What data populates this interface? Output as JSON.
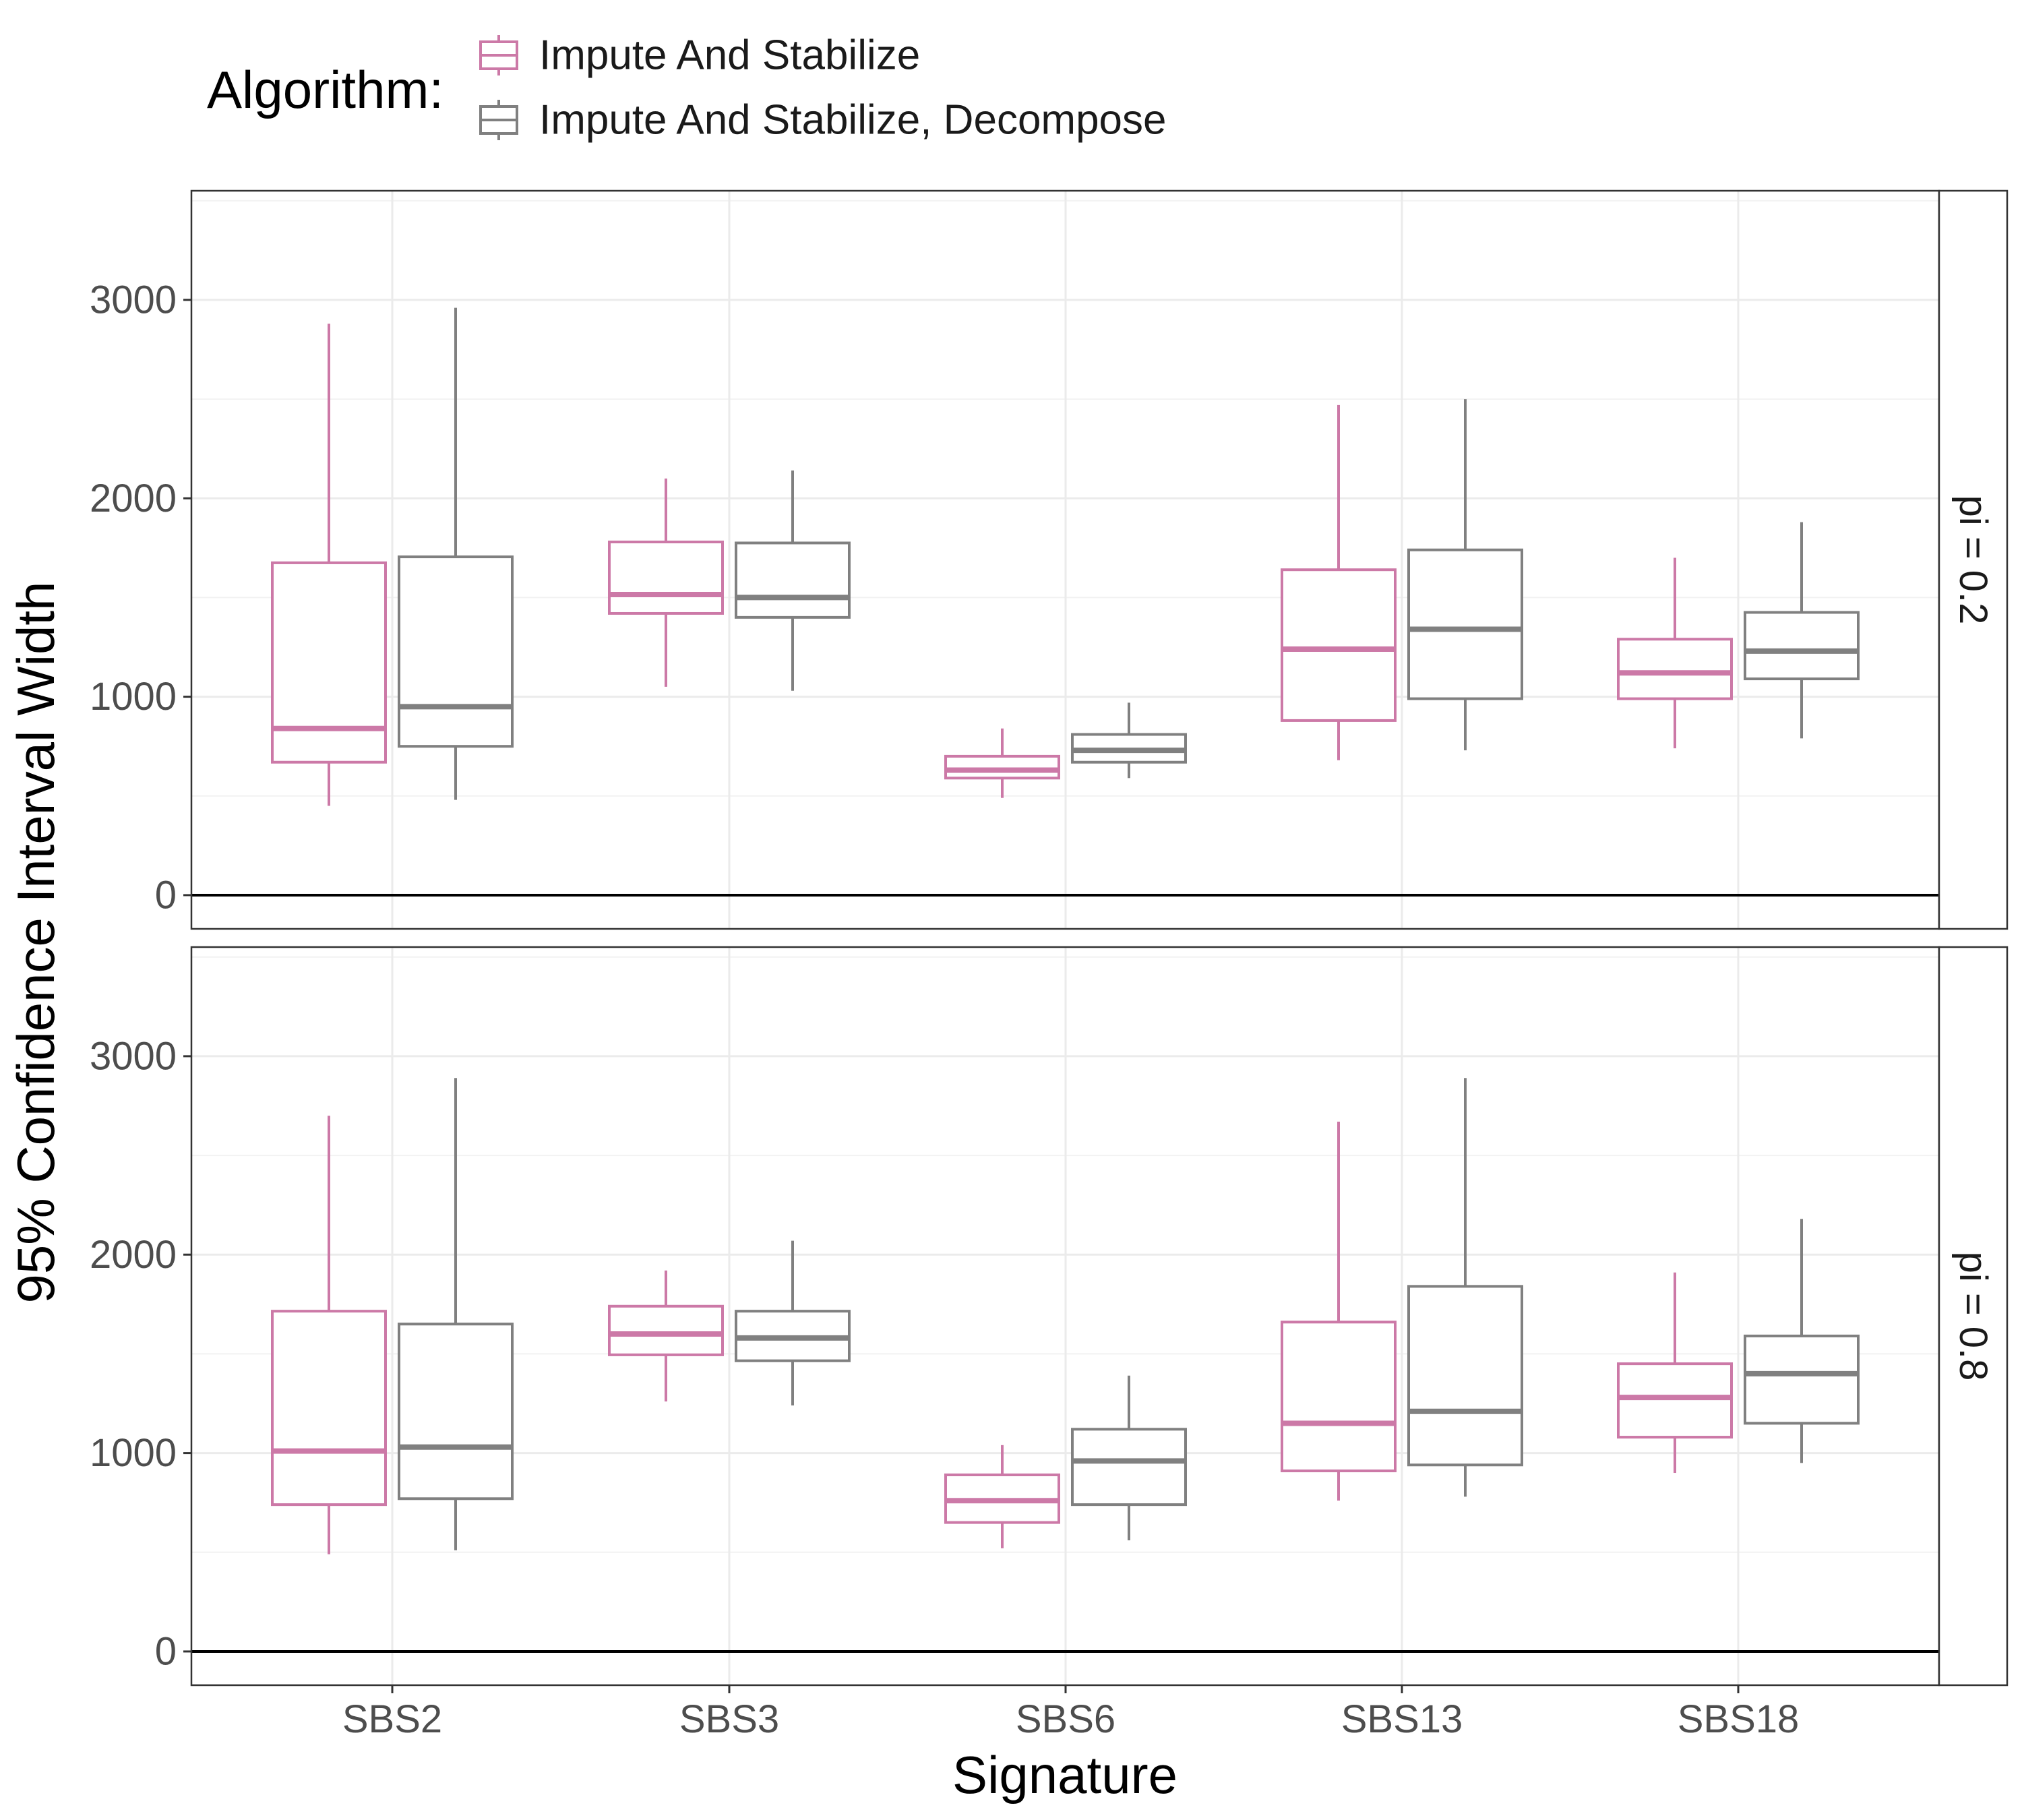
{
  "chart_data": {
    "type": "boxplot",
    "xlabel": "Signature",
    "ylabel": "95% Confidence Interval Width",
    "legend": {
      "title": "Algorithm:",
      "position": "top-left",
      "entries": [
        "Impute And Stabilize",
        "Impute And Stabilize, Decompose"
      ]
    },
    "colors": {
      "Impute And Stabilize": "#cc79a7",
      "Impute And Stabilize, Decompose": "#808080"
    },
    "categories": [
      "SBS2",
      "SBS3",
      "SBS6",
      "SBS13",
      "SBS18"
    ],
    "ylim": [
      -170,
      3550
    ],
    "yticks": [
      0,
      1000,
      2000,
      3000
    ],
    "yticks_labels": [
      "0",
      "1000",
      "2000",
      "3000"
    ],
    "hline": 0,
    "grid": true,
    "panels": [
      {
        "strip": "pi = 0.2",
        "series": [
          {
            "name": "Impute And Stabilize",
            "boxes": [
              {
                "min": 450,
                "q1": 670,
                "median": 840,
                "q3": 1675,
                "max": 2880
              },
              {
                "min": 1050,
                "q1": 1420,
                "median": 1515,
                "q3": 1780,
                "max": 2100
              },
              {
                "min": 490,
                "q1": 590,
                "median": 630,
                "q3": 700,
                "max": 840
              },
              {
                "min": 680,
                "q1": 880,
                "median": 1240,
                "q3": 1640,
                "max": 2470
              },
              {
                "min": 740,
                "q1": 990,
                "median": 1120,
                "q3": 1290,
                "max": 1700
              }
            ]
          },
          {
            "name": "Impute And Stabilize, Decompose",
            "boxes": [
              {
                "min": 480,
                "q1": 750,
                "median": 950,
                "q3": 1705,
                "max": 2960
              },
              {
                "min": 1030,
                "q1": 1400,
                "median": 1500,
                "q3": 1775,
                "max": 2140
              },
              {
                "min": 590,
                "q1": 670,
                "median": 730,
                "q3": 810,
                "max": 970
              },
              {
                "min": 730,
                "q1": 990,
                "median": 1340,
                "q3": 1740,
                "max": 2500
              },
              {
                "min": 790,
                "q1": 1090,
                "median": 1230,
                "q3": 1425,
                "max": 1880
              }
            ]
          }
        ]
      },
      {
        "strip": "pi = 0.8",
        "series": [
          {
            "name": "Impute And Stabilize",
            "boxes": [
              {
                "min": 490,
                "q1": 740,
                "median": 1010,
                "q3": 1715,
                "max": 2700
              },
              {
                "min": 1260,
                "q1": 1495,
                "median": 1600,
                "q3": 1740,
                "max": 1920
              },
              {
                "min": 520,
                "q1": 650,
                "median": 760,
                "q3": 890,
                "max": 1040
              },
              {
                "min": 760,
                "q1": 910,
                "median": 1150,
                "q3": 1660,
                "max": 2670
              },
              {
                "min": 900,
                "q1": 1080,
                "median": 1280,
                "q3": 1450,
                "max": 1910
              }
            ]
          },
          {
            "name": "Impute And Stabilize, Decompose",
            "boxes": [
              {
                "min": 510,
                "q1": 770,
                "median": 1030,
                "q3": 1650,
                "max": 2890
              },
              {
                "min": 1240,
                "q1": 1465,
                "median": 1580,
                "q3": 1715,
                "max": 2070
              },
              {
                "min": 560,
                "q1": 740,
                "median": 960,
                "q3": 1120,
                "max": 1390
              },
              {
                "min": 780,
                "q1": 940,
                "median": 1210,
                "q3": 1840,
                "max": 2890
              },
              {
                "min": 950,
                "q1": 1150,
                "median": 1400,
                "q3": 1590,
                "max": 2180
              }
            ]
          }
        ]
      }
    ]
  }
}
